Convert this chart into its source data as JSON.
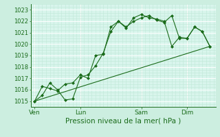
{
  "bg_color": "#cceee0",
  "plot_bg_color": "#d8f5ec",
  "grid_major_color": "#ffffff",
  "grid_minor_color": "#c0e8d8",
  "line_color": "#1a6b1a",
  "marker_color": "#1a6b1a",
  "xlabel": "Pression niveau de la mer( hPa )",
  "ylim": [
    1014.5,
    1023.5
  ],
  "yticks": [
    1015,
    1016,
    1017,
    1018,
    1019,
    1020,
    1021,
    1022,
    1023
  ],
  "xtick_labels": [
    "Ven",
    "Lun",
    "Sam",
    "Dim"
  ],
  "xtick_positions": [
    0,
    24,
    56,
    80
  ],
  "vline_positions": [
    0,
    24,
    56,
    80
  ],
  "xlim": [
    -2,
    95
  ],
  "series1_x": [
    0,
    4,
    8,
    12,
    16,
    20,
    24,
    28,
    32,
    36,
    40,
    44,
    48,
    52,
    56,
    60,
    64,
    68,
    72,
    76,
    80,
    84,
    88,
    92
  ],
  "series1_y": [
    1015.0,
    1015.5,
    1016.6,
    1016.0,
    1015.1,
    1015.2,
    1017.1,
    1017.3,
    1018.1,
    1019.2,
    1021.1,
    1022.0,
    1021.5,
    1022.0,
    1022.3,
    1022.5,
    1022.1,
    1021.9,
    1022.5,
    1020.5,
    1020.5,
    1021.5,
    1021.1,
    1019.8
  ],
  "series2_x": [
    0,
    4,
    8,
    12,
    16,
    20,
    24,
    28,
    32,
    36,
    40,
    44,
    48,
    52,
    56,
    60,
    64,
    68,
    72,
    76,
    80,
    84,
    88,
    92
  ],
  "series2_y": [
    1015.0,
    1016.3,
    1016.1,
    1015.9,
    1016.5,
    1016.6,
    1017.3,
    1017.0,
    1019.0,
    1019.1,
    1021.5,
    1022.0,
    1021.4,
    1022.3,
    1022.6,
    1022.3,
    1022.2,
    1022.0,
    1019.8,
    1020.6,
    1020.5,
    1021.5,
    1021.1,
    1019.8
  ],
  "trend_x": [
    0,
    92
  ],
  "trend_y": [
    1015.0,
    1019.8
  ],
  "xlabel_fontsize": 7.5,
  "ytick_fontsize": 6,
  "xtick_fontsize": 6.5
}
